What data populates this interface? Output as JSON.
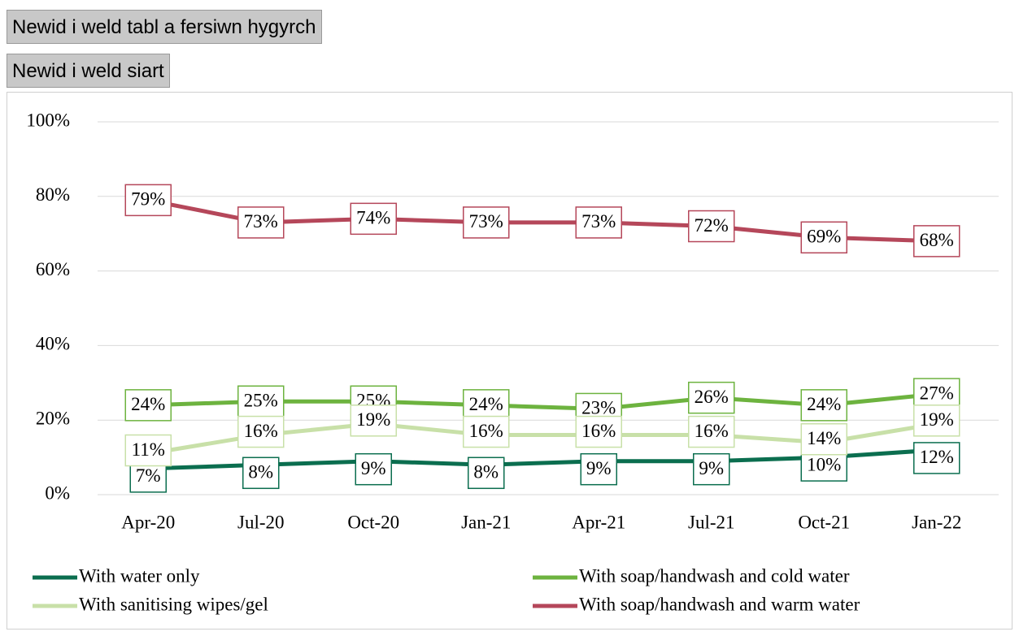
{
  "buttons": [
    "Newid i weld tabl a fersiwn hygyrch",
    "Newid i weld siart"
  ],
  "chart_data": {
    "type": "line",
    "categories": [
      "Apr-20",
      "Jul-20",
      "Oct-20",
      "Jan-21",
      "Apr-21",
      "Jul-21",
      "Oct-21",
      "Jan-22"
    ],
    "series": [
      {
        "name": "With water only",
        "color": "#0b6e4f",
        "values": [
          7,
          8,
          9,
          8,
          9,
          9,
          10,
          12
        ],
        "value_labels": [
          "7%",
          "8%",
          "9%",
          "8%",
          "9%",
          "9%",
          "10%",
          "12%"
        ]
      },
      {
        "name": "With soap/handwash and cold water",
        "color": "#6db33f",
        "values": [
          24,
          25,
          25,
          24,
          23,
          26,
          24,
          27
        ],
        "value_labels": [
          "24%",
          "25%",
          "25%",
          "24%",
          "23%",
          "26%",
          "24%",
          "27%"
        ]
      },
      {
        "name": "With sanitising wipes/gel",
        "color": "#c8e0a8",
        "values": [
          11,
          16,
          19,
          16,
          16,
          16,
          14,
          19
        ],
        "value_labels": [
          "11%",
          "16%",
          "19%",
          "16%",
          "16%",
          "16%",
          "14%",
          "19%"
        ]
      },
      {
        "name": "With soap/handwash and warm water",
        "color": "#b5475a",
        "values": [
          79,
          73,
          74,
          73,
          73,
          72,
          69,
          68
        ],
        "value_labels": [
          "79%",
          "73%",
          "74%",
          "73%",
          "73%",
          "72%",
          "69%",
          "68%"
        ]
      }
    ],
    "ylim": [
      0,
      100
    ],
    "yticks": [
      {
        "value": 0,
        "label": "0%"
      },
      {
        "value": 20,
        "label": "20%"
      },
      {
        "value": 40,
        "label": "40%"
      },
      {
        "value": 60,
        "label": "60%"
      },
      {
        "value": 80,
        "label": "80%"
      },
      {
        "value": 100,
        "label": "100%"
      }
    ],
    "grid": true,
    "legend": "bottom"
  }
}
